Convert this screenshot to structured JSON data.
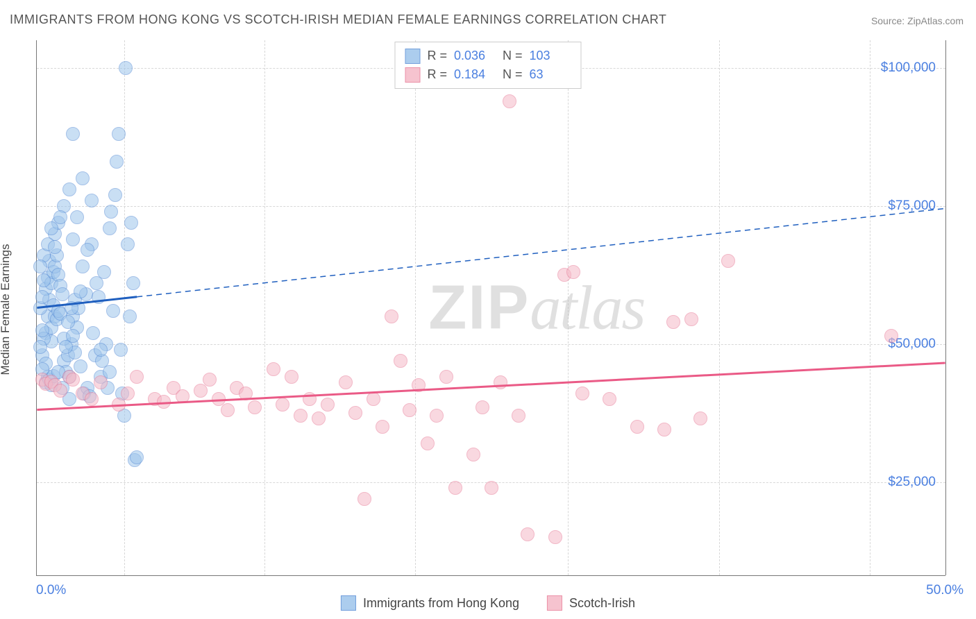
{
  "title": "IMMIGRANTS FROM HONG KONG VS SCOTCH-IRISH MEDIAN FEMALE EARNINGS CORRELATION CHART",
  "source": "Source: ZipAtlas.com",
  "ylabel": "Median Female Earnings",
  "watermark_bold": "ZIP",
  "watermark_rest": "atlas",
  "chart": {
    "type": "scatter",
    "xlim": [
      0,
      50
    ],
    "ylim": [
      8000,
      105000
    ],
    "x_ticks": [
      0,
      50
    ],
    "x_tick_labels": [
      "0.0%",
      "50.0%"
    ],
    "x_minor_ticks": [
      4.8,
      12.5,
      20.8,
      29.2,
      37.5,
      45.8
    ],
    "y_ticks": [
      25000,
      50000,
      75000,
      100000
    ],
    "y_tick_labels": [
      "$25,000",
      "$50,000",
      "$75,000",
      "$100,000"
    ],
    "background_color": "#ffffff",
    "grid_color": "#d7d7d7",
    "axis_color": "#777777",
    "point_radius": 10,
    "series": [
      {
        "name": "Immigrants from Hong Kong",
        "fill_color": "#9ec5ec",
        "fill_opacity": 0.55,
        "stroke_color": "#5b8fd6",
        "R": "0.036",
        "N": "103",
        "trend": {
          "color": "#1f5fbf",
          "width": 3,
          "solid_range_x": [
            0,
            5.5
          ],
          "y_at_x0": 56500,
          "y_at_xmax": 74500
        },
        "points": [
          [
            0.5,
            43000
          ],
          [
            0.6,
            44000
          ],
          [
            0.7,
            43500
          ],
          [
            0.8,
            42500
          ],
          [
            0.9,
            44200
          ],
          [
            0.5,
            52000
          ],
          [
            0.6,
            55000
          ],
          [
            0.7,
            58000
          ],
          [
            0.8,
            53000
          ],
          [
            0.9,
            57000
          ],
          [
            1.0,
            55000
          ],
          [
            1.1,
            54500
          ],
          [
            1.2,
            56000
          ],
          [
            1.3,
            55500
          ],
          [
            0.8,
            50500
          ],
          [
            0.5,
            60000
          ],
          [
            0.6,
            62000
          ],
          [
            0.7,
            65000
          ],
          [
            0.8,
            61000
          ],
          [
            0.9,
            63000
          ],
          [
            1.0,
            64000
          ],
          [
            1.1,
            66000
          ],
          [
            1.2,
            62500
          ],
          [
            1.3,
            60500
          ],
          [
            1.4,
            59000
          ],
          [
            1.5,
            47000
          ],
          [
            1.6,
            45000
          ],
          [
            1.7,
            48000
          ],
          [
            1.8,
            44000
          ],
          [
            1.9,
            50000
          ],
          [
            2.0,
            55000
          ],
          [
            2.1,
            58000
          ],
          [
            2.2,
            53000
          ],
          [
            2.3,
            56500
          ],
          [
            2.4,
            46000
          ],
          [
            2.5,
            64000
          ],
          [
            2.6,
            41000
          ],
          [
            2.7,
            59000
          ],
          [
            2.8,
            42000
          ],
          [
            2.9,
            40500
          ],
          [
            3.0,
            68000
          ],
          [
            3.1,
            52000
          ],
          [
            3.2,
            48000
          ],
          [
            3.3,
            61000
          ],
          [
            3.4,
            58500
          ],
          [
            3.5,
            44000
          ],
          [
            3.6,
            47000
          ],
          [
            3.7,
            63000
          ],
          [
            3.8,
            50000
          ],
          [
            3.9,
            42000
          ],
          [
            4.0,
            71000
          ],
          [
            4.1,
            74000
          ],
          [
            4.2,
            56000
          ],
          [
            4.3,
            77000
          ],
          [
            4.4,
            83000
          ],
          [
            4.5,
            88000
          ],
          [
            4.6,
            49000
          ],
          [
            4.7,
            41000
          ],
          [
            4.8,
            37000
          ],
          [
            4.9,
            100000
          ],
          [
            5.0,
            68000
          ],
          [
            5.1,
            55000
          ],
          [
            5.2,
            72000
          ],
          [
            5.3,
            61000
          ],
          [
            5.4,
            29000
          ],
          [
            5.5,
            29500
          ],
          [
            1.0,
            70000
          ],
          [
            1.2,
            72000
          ],
          [
            1.5,
            75000
          ],
          [
            1.8,
            78000
          ],
          [
            2.0,
            69000
          ],
          [
            2.2,
            73000
          ],
          [
            2.5,
            80000
          ],
          [
            2.8,
            67000
          ],
          [
            3.0,
            76000
          ],
          [
            0.4,
            66000
          ],
          [
            0.6,
            68000
          ],
          [
            0.8,
            71000
          ],
          [
            1.0,
            67500
          ],
          [
            1.3,
            73000
          ],
          [
            0.3,
            48000
          ],
          [
            0.4,
            51000
          ],
          [
            0.5,
            46500
          ],
          [
            0.2,
            49500
          ],
          [
            0.3,
            52500
          ],
          [
            1.5,
            51000
          ],
          [
            1.7,
            54000
          ],
          [
            1.9,
            56500
          ],
          [
            2.1,
            48500
          ],
          [
            2.4,
            59500
          ],
          [
            0.2,
            56500
          ],
          [
            0.3,
            58500
          ],
          [
            0.4,
            61500
          ],
          [
            0.2,
            64000
          ],
          [
            0.3,
            45500
          ],
          [
            1.2,
            45000
          ],
          [
            1.4,
            42000
          ],
          [
            1.6,
            49500
          ],
          [
            1.8,
            40000
          ],
          [
            2.0,
            51500
          ],
          [
            3.5,
            49000
          ],
          [
            4.0,
            45000
          ],
          [
            2.0,
            88000
          ]
        ]
      },
      {
        "name": "Scotch-Irish",
        "fill_color": "#f5b9c7",
        "fill_opacity": 0.55,
        "stroke_color": "#e87e9a",
        "R": "0.184",
        "N": "63",
        "trend": {
          "color": "#ea5a86",
          "width": 3,
          "solid_range_x": [
            0,
            50
          ],
          "y_at_x0": 38000,
          "y_at_xmax": 46500
        },
        "points": [
          [
            0.3,
            43500
          ],
          [
            0.5,
            42800
          ],
          [
            0.8,
            43200
          ],
          [
            1.0,
            42500
          ],
          [
            1.3,
            41500
          ],
          [
            1.8,
            44000
          ],
          [
            2.0,
            43500
          ],
          [
            2.5,
            41000
          ],
          [
            3.0,
            40000
          ],
          [
            3.5,
            43000
          ],
          [
            4.5,
            39000
          ],
          [
            5.0,
            41000
          ],
          [
            5.5,
            44000
          ],
          [
            6.5,
            40000
          ],
          [
            7.0,
            39500
          ],
          [
            7.5,
            42000
          ],
          [
            8.0,
            40500
          ],
          [
            9.0,
            41500
          ],
          [
            9.5,
            43500
          ],
          [
            10.0,
            40000
          ],
          [
            10.5,
            38000
          ],
          [
            11.0,
            42000
          ],
          [
            11.5,
            41000
          ],
          [
            12.0,
            38500
          ],
          [
            13.0,
            45500
          ],
          [
            13.5,
            39000
          ],
          [
            14.0,
            44000
          ],
          [
            14.5,
            37000
          ],
          [
            15.0,
            40000
          ],
          [
            15.5,
            36500
          ],
          [
            16.0,
            39000
          ],
          [
            17.0,
            43000
          ],
          [
            17.5,
            37500
          ],
          [
            18.5,
            40000
          ],
          [
            19.0,
            35000
          ],
          [
            19.5,
            55000
          ],
          [
            20.0,
            47000
          ],
          [
            20.5,
            38000
          ],
          [
            21.0,
            42500
          ],
          [
            21.5,
            32000
          ],
          [
            22.0,
            37000
          ],
          [
            22.5,
            44000
          ],
          [
            23.0,
            24000
          ],
          [
            24.0,
            30000
          ],
          [
            24.5,
            38500
          ],
          [
            25.0,
            24000
          ],
          [
            25.5,
            43000
          ],
          [
            26.0,
            94000
          ],
          [
            26.5,
            37000
          ],
          [
            27.0,
            15500
          ],
          [
            28.5,
            15000
          ],
          [
            29.0,
            62500
          ],
          [
            29.5,
            63000
          ],
          [
            30.0,
            41000
          ],
          [
            31.5,
            40000
          ],
          [
            33.0,
            35000
          ],
          [
            34.5,
            34500
          ],
          [
            35.0,
            54000
          ],
          [
            36.0,
            54500
          ],
          [
            38.0,
            65000
          ],
          [
            36.5,
            36500
          ],
          [
            47.0,
            51500
          ],
          [
            18.0,
            22000
          ]
        ]
      }
    ]
  },
  "legend_bottom": [
    {
      "label": "Immigrants from Hong Kong",
      "series_idx": 0
    },
    {
      "label": "Scotch-Irish",
      "series_idx": 1
    }
  ]
}
